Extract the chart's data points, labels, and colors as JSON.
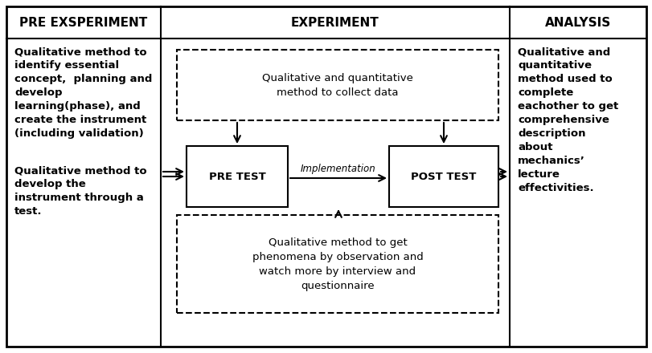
{
  "col1_header": "PRE EXSPERIMENT",
  "col2_header": "EXPERIMENT",
  "col3_header": "ANALYSIS",
  "col1_text1": "Qualitative method to\nidentify essential\nconcept,  planning and\ndevelop\nlearning(phase), and\ncreate the instrument\n(including validation)",
  "col1_text2": "Qualitative method to\ndevelop the\ninstrument through a\ntest.",
  "col3_text": "Qualitative and\nquantitative\nmethod used to\ncomplete\neachother to get\ncomprehensive\ndescription\nabout\nmechanics’\nlecture\neffectivities.",
  "top_dashed_text": "Qualitative and quantitative\nmethod to collect data",
  "bottom_dashed_text": "Qualitative method to get\nphenomena by observation and\nwatch more by interview and\nquestionnaire",
  "pre_test_label": "PRE TEST",
  "post_test_label": "POST TEST",
  "implementation_label": "Implementation",
  "bg_color": "#ffffff",
  "text_color": "#000000",
  "header_fontsize": 11,
  "body_fontsize": 9.5,
  "impl_fontsize": 8.5
}
